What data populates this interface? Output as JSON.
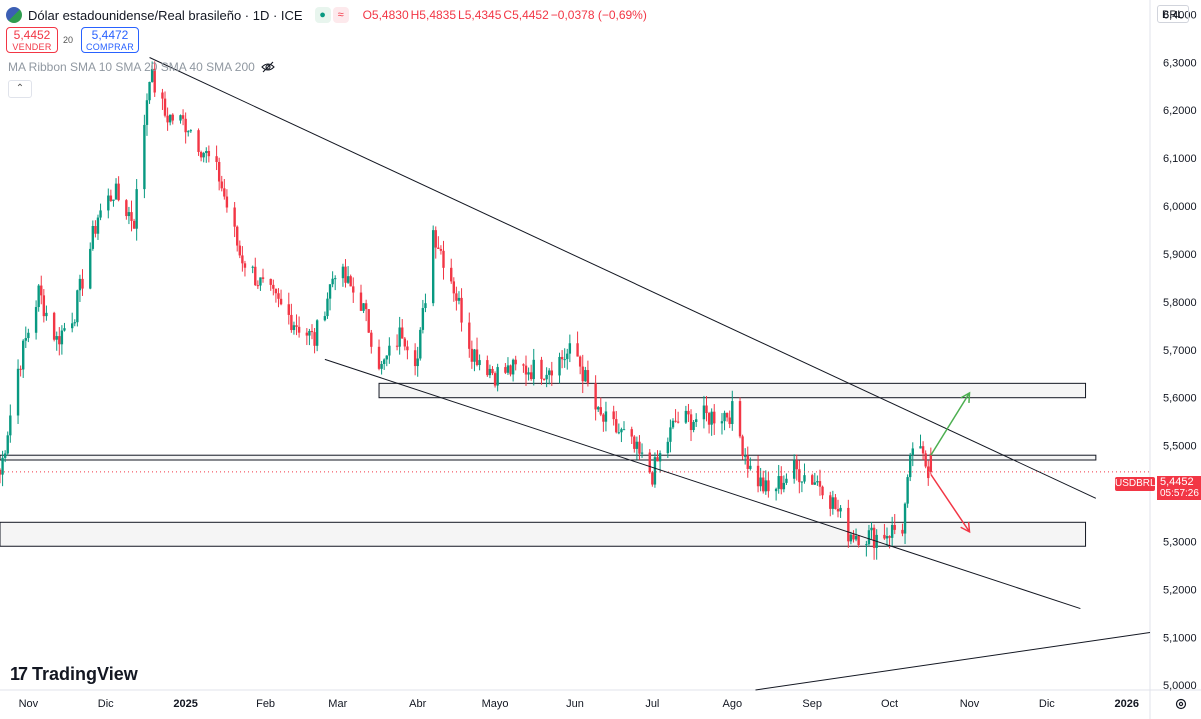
{
  "header": {
    "title": "Dólar estadounidense/Real brasileño · 1D · ICE",
    "open": "O5,4830",
    "high": "H5,4835",
    "low": "L5,4345",
    "close": "C5,4452",
    "change": "−0,0378 (−0,69%)"
  },
  "trade": {
    "sell_price": "5,4452",
    "sell_label": "VENDER",
    "spread": "20",
    "buy_price": "5,4472",
    "buy_label": "COMPRAR"
  },
  "indicator": {
    "label": "MA Ribbon SMA 10 SMA 20 SMA 40 SMA 200"
  },
  "currency": "BRL",
  "price_tag": {
    "symbol": "USDBRL",
    "price": "5,4452",
    "countdown": "05:57:26"
  },
  "brand": "TradingView",
  "colors": {
    "up": "#089981",
    "down": "#f23645",
    "green_arrow": "#4caf50",
    "red_arrow": "#f23645"
  },
  "icons": [
    "flag-icon",
    "eye-off-icon",
    "chevron-up-icon",
    "gear-icon"
  ],
  "chart_data": {
    "type": "candlestick",
    "x_labels": [
      "Nov",
      "Dic",
      "2025",
      "Feb",
      "Mar",
      "Abr",
      "Mayo",
      "Jun",
      "Jul",
      "Ago",
      "Sep",
      "Oct",
      "Nov",
      "Dic",
      "2026"
    ],
    "y_ticks": [
      "5,0000",
      "5,1000",
      "5,2000",
      "5,3000",
      "5,4000",
      "5,5000",
      "5,6000",
      "5,7000",
      "5,8000",
      "5,9000",
      "6,0000",
      "6,1000",
      "6,2000",
      "6,3000",
      "6,4000"
    ],
    "ylim": [
      4.99,
      6.43
    ],
    "xrange": [
      "2024-10-21",
      "2026-01-10"
    ],
    "last_close": 5.4452,
    "anchors": [
      [
        "2024-10-21",
        5.44
      ],
      [
        "2024-10-28",
        5.66
      ],
      [
        "2024-11-05",
        5.82
      ],
      [
        "2024-11-12",
        5.72
      ],
      [
        "2024-11-19",
        5.78
      ],
      [
        "2024-11-28",
        5.98
      ],
      [
        "2024-12-04",
        6.03
      ],
      [
        "2024-12-12",
        5.97
      ],
      [
        "2024-12-18",
        6.28
      ],
      [
        "2024-12-24",
        6.19
      ],
      [
        "2025-01-02",
        6.17
      ],
      [
        "2025-01-14",
        6.06
      ],
      [
        "2025-01-22",
        5.9
      ],
      [
        "2025-01-31",
        5.83
      ],
      [
        "2025-02-10",
        5.77
      ],
      [
        "2025-02-20",
        5.72
      ],
      [
        "2025-02-28",
        5.87
      ],
      [
        "2025-03-10",
        5.8
      ],
      [
        "2025-03-18",
        5.66
      ],
      [
        "2025-03-26",
        5.74
      ],
      [
        "2025-04-01",
        5.68
      ],
      [
        "2025-04-07",
        5.95
      ],
      [
        "2025-04-14",
        5.85
      ],
      [
        "2025-04-22",
        5.7
      ],
      [
        "2025-05-01",
        5.65
      ],
      [
        "2025-05-10",
        5.66
      ],
      [
        "2025-05-20",
        5.66
      ],
      [
        "2025-06-01",
        5.7
      ],
      [
        "2025-06-10",
        5.56
      ],
      [
        "2025-06-20",
        5.52
      ],
      [
        "2025-07-01",
        5.44
      ],
      [
        "2025-07-10",
        5.55
      ],
      [
        "2025-07-22",
        5.56
      ],
      [
        "2025-08-01",
        5.57
      ],
      [
        "2025-08-08",
        5.45
      ],
      [
        "2025-08-15",
        5.4
      ],
      [
        "2025-08-25",
        5.45
      ],
      [
        "2025-09-05",
        5.42
      ],
      [
        "2025-09-15",
        5.32
      ],
      [
        "2025-09-25",
        5.31
      ],
      [
        "2025-10-06",
        5.33
      ],
      [
        "2025-10-10",
        5.5
      ],
      [
        "2025-10-17",
        5.4452
      ]
    ],
    "annotations": {
      "trendlines": [
        {
          "from": [
            "2024-12-18",
            6.31
          ],
          "to": [
            "2025-12-20",
            5.39
          ]
        },
        {
          "from": [
            "2025-02-24",
            5.68
          ],
          "to": [
            "2025-12-14",
            5.16
          ]
        },
        {
          "from": [
            "2025-08-10",
            4.99
          ],
          "to": [
            "2026-01-10",
            5.11
          ]
        }
      ],
      "zones": [
        {
          "from": "2025-03-17",
          "to": "2025-12-16",
          "low": 5.6,
          "high": 5.63
        },
        {
          "from": "2024-10-21",
          "to": "2025-12-20",
          "low": 5.47,
          "high": 5.48
        },
        {
          "from": "2024-10-21",
          "to": "2025-12-16",
          "low": 5.29,
          "high": 5.34
        }
      ],
      "arrows": [
        {
          "from": [
            "2025-10-17",
            5.48
          ],
          "to": [
            "2025-11-01",
            5.61
          ],
          "color": "green"
        },
        {
          "from": [
            "2025-10-17",
            5.44
          ],
          "to": [
            "2025-11-01",
            5.32
          ],
          "color": "red"
        }
      ],
      "current_price_line": 5.4452
    }
  }
}
